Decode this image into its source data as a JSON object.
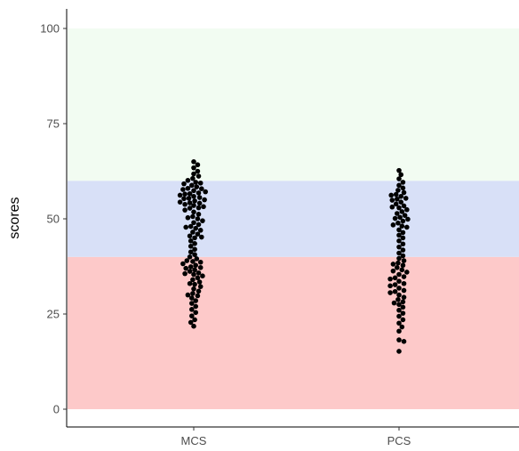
{
  "chart_data": {
    "type": "scatter",
    "subtype": "beeswarm",
    "title": "",
    "xlabel": "",
    "ylabel": "scores",
    "categories": [
      "MCS",
      "PCS"
    ],
    "ylim": [
      0,
      100
    ],
    "yticks": [
      0,
      25,
      50,
      75,
      100
    ],
    "grid": false,
    "bands": [
      {
        "from": 0,
        "to": 40,
        "color": "#fdc9c9"
      },
      {
        "from": 40,
        "to": 60,
        "color": "#d8e0f7"
      },
      {
        "from": 60,
        "to": 100,
        "color": "#f2fcf2"
      }
    ],
    "point_color": "#000000",
    "series": [
      {
        "category": "MCS",
        "values": [
          65.0,
          64.2,
          63.4,
          62.5,
          61.8,
          61.2,
          60.6,
          60.1,
          59.6,
          59.2,
          58.8,
          58.4,
          58.0,
          57.7,
          57.4,
          57.1,
          56.8,
          56.5,
          56.2,
          55.9,
          55.6,
          55.3,
          55.0,
          54.7,
          54.4,
          54.1,
          53.8,
          53.5,
          53.2,
          52.8,
          52.3,
          51.8,
          51.2,
          50.6,
          50.0,
          49.5,
          49.0,
          48.5,
          48.0,
          47.5,
          47.0,
          46.5,
          46.0,
          45.5,
          45.0,
          44.2,
          43.5,
          42.8,
          42.0,
          41.3,
          40.6,
          40.0,
          39.5,
          39.0,
          38.6,
          38.2,
          37.8,
          37.4,
          37.0,
          36.6,
          36.2,
          35.8,
          35.4,
          35.0,
          34.5,
          34.0,
          33.4,
          32.8,
          32.2,
          31.6,
          31.0,
          30.4,
          29.8,
          29.2,
          28.5,
          27.8,
          27.0,
          26.2,
          25.4,
          24.5,
          23.5,
          22.8,
          21.8,
          59.4,
          57.9,
          56.6,
          55.4,
          54.2,
          52.9,
          50.3,
          47.8,
          45.2,
          38.8,
          37.2,
          35.6,
          33.0,
          30.0
        ]
      },
      {
        "category": "PCS",
        "values": [
          62.7,
          61.6,
          60.5,
          59.6,
          58.8,
          58.1,
          57.5,
          56.9,
          56.4,
          55.9,
          55.4,
          54.9,
          54.4,
          53.9,
          53.4,
          52.9,
          52.4,
          51.9,
          51.4,
          50.9,
          50.4,
          49.9,
          49.4,
          48.9,
          48.4,
          47.8,
          47.1,
          46.4,
          45.7,
          45.0,
          44.2,
          43.4,
          42.6,
          41.8,
          41.0,
          40.3,
          39.6,
          39.0,
          38.4,
          37.8,
          37.2,
          36.6,
          36.0,
          35.4,
          34.8,
          34.2,
          33.6,
          33.0,
          32.4,
          31.8,
          31.2,
          30.6,
          30.0,
          29.4,
          28.8,
          28.2,
          27.5,
          26.8,
          26.0,
          25.2,
          24.4,
          23.5,
          22.6,
          21.6,
          20.5,
          18.2,
          17.8,
          15.2,
          56.2,
          55.2,
          53.1,
          50.1,
          48.1,
          38.1,
          36.3,
          34.5,
          32.7,
          30.9,
          27.9
        ]
      }
    ]
  }
}
